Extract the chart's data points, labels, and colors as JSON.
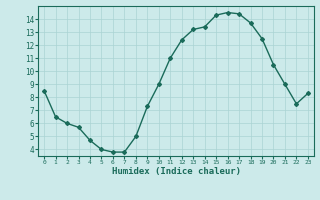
{
  "x": [
    0,
    1,
    2,
    3,
    4,
    5,
    6,
    7,
    8,
    9,
    10,
    11,
    12,
    13,
    14,
    15,
    16,
    17,
    18,
    19,
    20,
    21,
    22,
    23
  ],
  "y": [
    8.5,
    6.5,
    6.0,
    5.7,
    4.7,
    4.0,
    3.8,
    3.8,
    5.0,
    7.3,
    9.0,
    11.0,
    12.4,
    13.2,
    13.4,
    14.3,
    14.5,
    14.4,
    13.7,
    12.5,
    10.5,
    9.0,
    7.5,
    8.3
  ],
  "line_color": "#1a6b5a",
  "marker": "D",
  "markersize": 2,
  "linewidth": 1.0,
  "bg_color": "#cceaea",
  "grid_color": "#aad4d4",
  "tick_color": "#1a6b5a",
  "xlabel": "Humidex (Indice chaleur)",
  "xlabel_fontsize": 6.5,
  "ylim": [
    3.5,
    15.0
  ],
  "xlim": [
    -0.5,
    23.5
  ],
  "yticks": [
    4,
    5,
    6,
    7,
    8,
    9,
    10,
    11,
    12,
    13,
    14
  ],
  "xticks": [
    0,
    1,
    2,
    3,
    4,
    5,
    6,
    7,
    8,
    9,
    10,
    11,
    12,
    13,
    14,
    15,
    16,
    17,
    18,
    19,
    20,
    21,
    22,
    23
  ]
}
